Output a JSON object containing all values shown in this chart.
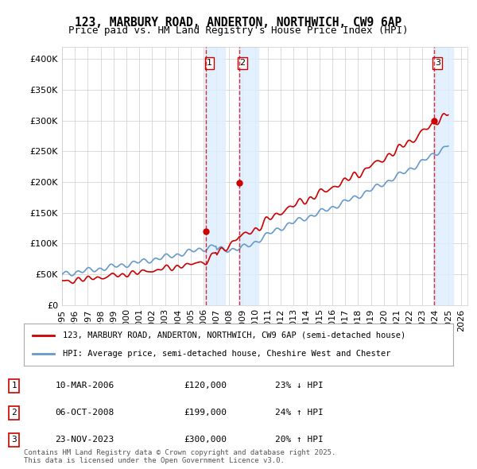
{
  "title": "123, MARBURY ROAD, ANDERTON, NORTHWICH, CW9 6AP",
  "subtitle": "Price paid vs. HM Land Registry's House Price Index (HPI)",
  "red_label": "123, MARBURY ROAD, ANDERTON, NORTHWICH, CW9 6AP (semi-detached house)",
  "blue_label": "HPI: Average price, semi-detached house, Cheshire West and Chester",
  "transactions": [
    {
      "num": 1,
      "date": "10-MAR-2006",
      "price": 120000,
      "pct": "23%",
      "dir": "↓",
      "ref": "HPI",
      "year": 2006.19
    },
    {
      "num": 2,
      "date": "06-OCT-2008",
      "price": 199000,
      "pct": "24%",
      "dir": "↑",
      "ref": "HPI",
      "year": 2008.76
    },
    {
      "num": 3,
      "date": "23-NOV-2023",
      "price": 300000,
      "pct": "20%",
      "dir": "↑",
      "ref": "HPI",
      "year": 2023.9
    }
  ],
  "footer": "Contains HM Land Registry data © Crown copyright and database right 2025.\nThis data is licensed under the Open Government Licence v3.0.",
  "red_color": "#cc0000",
  "blue_color": "#6699cc",
  "highlight_color": "#ddeeff",
  "bg_color": "#ffffff",
  "grid_color": "#cccccc",
  "ylim": [
    0,
    420000
  ],
  "xlim_start": 1995,
  "xlim_end": 2026.5
}
